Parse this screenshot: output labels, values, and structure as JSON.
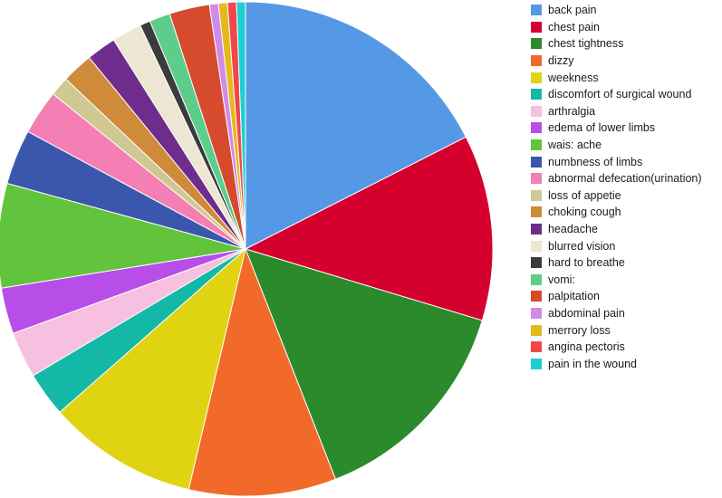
{
  "chart_data": {
    "type": "pie",
    "title": "",
    "start_angle_deg": 0,
    "direction": "clockwise",
    "legend_position": "right",
    "slices": [
      {
        "label": "back pain",
        "value": 18.0,
        "color": "#5599e6"
      },
      {
        "label": "chest pain",
        "value": 12.5,
        "color": "#d6002e"
      },
      {
        "label": "chest tightness",
        "value": 14.8,
        "color": "#2b8a2b"
      },
      {
        "label": "dizzy",
        "value": 9.9,
        "color": "#f26a2a"
      },
      {
        "label": "weekness",
        "value": 10.1,
        "color": "#e0d312"
      },
      {
        "label": "discomfort of surgical wound",
        "value": 3.0,
        "color": "#14b8a6"
      },
      {
        "label": "arthralgia",
        "value": 3.1,
        "color": "#f7bfe0"
      },
      {
        "label": "edema of lower limbs",
        "value": 3.1,
        "color": "#b84ee8"
      },
      {
        "label": "wais: ache",
        "value": 7.0,
        "color": "#62c43c"
      },
      {
        "label": "numbness of limbs",
        "value": 3.7,
        "color": "#3a57ad"
      },
      {
        "label": "abnormal defecation(urination)",
        "value": 3.0,
        "color": "#f47fb4"
      },
      {
        "label": "loss of appetie",
        "value": 1.3,
        "color": "#cfc892"
      },
      {
        "label": "choking cough",
        "value": 2.1,
        "color": "#cf8a3a"
      },
      {
        "label": "headache",
        "value": 2.0,
        "color": "#6e2d8c"
      },
      {
        "label": "blurred vision",
        "value": 2.0,
        "color": "#ece6d2"
      },
      {
        "label": "hard to breathe",
        "value": 0.7,
        "color": "#3b3b3b"
      },
      {
        "label": "vomi:",
        "value": 1.4,
        "color": "#5ccd8a"
      },
      {
        "label": "palpitation",
        "value": 2.7,
        "color": "#d64a2e"
      },
      {
        "label": "abdominal pain",
        "value": 0.6,
        "color": "#cf8be8"
      },
      {
        "label": "merrory loss",
        "value": 0.6,
        "color": "#e6b81c"
      },
      {
        "label": "angina pectoris",
        "value": 0.6,
        "color": "#f04848"
      },
      {
        "label": "pain in the wound",
        "value": 0.6,
        "color": "#1ccfd2"
      }
    ]
  }
}
